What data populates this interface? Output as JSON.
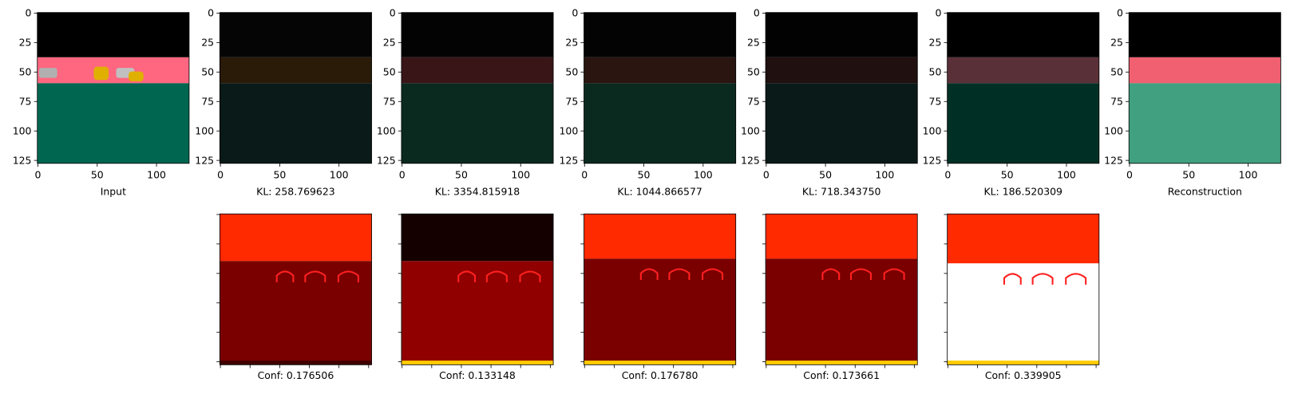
{
  "axes": {
    "xticks": [
      0,
      50,
      100
    ],
    "yticks": [
      0,
      25,
      50,
      75,
      100,
      125
    ]
  },
  "top": [
    {
      "xlabel": "Input"
    },
    {
      "xlabel": "KL: 258.769623"
    },
    {
      "xlabel": "KL: 3354.815918"
    },
    {
      "xlabel": "KL: 1044.866577"
    },
    {
      "xlabel": "KL: 718.343750"
    },
    {
      "xlabel": "KL: 186.520309"
    },
    {
      "xlabel": "Reconstruction"
    }
  ],
  "bottom": [
    {
      "xlabel": "Conf: 0.176506"
    },
    {
      "xlabel": "Conf: 0.133148"
    },
    {
      "xlabel": "Conf: 0.176780"
    },
    {
      "xlabel": "Conf: 0.173661"
    },
    {
      "xlabel": "Conf: 0.339905"
    }
  ]
}
